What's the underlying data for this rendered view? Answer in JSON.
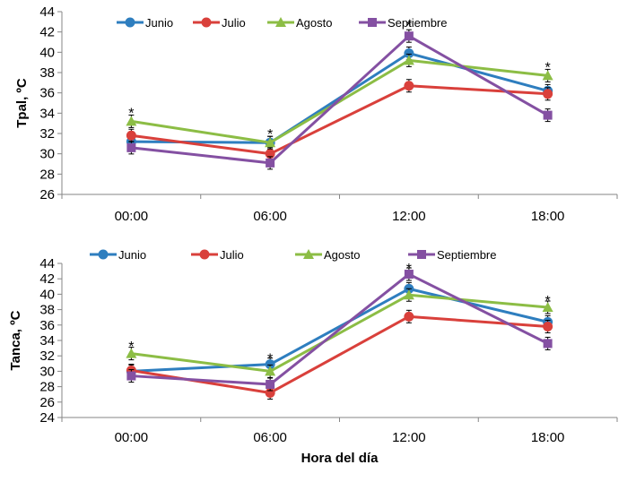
{
  "chart_data": [
    {
      "type": "line",
      "title": "",
      "xlabel": "",
      "ylabel": "Tpal, ºC",
      "ylim": [
        26,
        44
      ],
      "yticks": [
        26,
        28,
        30,
        32,
        34,
        36,
        38,
        40,
        42,
        44
      ],
      "categories": [
        "00:00",
        "06:00",
        "12:00",
        "18:00"
      ],
      "series": [
        {
          "name": "Junio",
          "color": "#2e7ebf",
          "marker": "circle",
          "values": [
            31.2,
            31.1,
            39.9,
            36.2
          ]
        },
        {
          "name": "Julio",
          "color": "#d9403b",
          "marker": "circle",
          "values": [
            31.8,
            30.0,
            36.7,
            35.9
          ]
        },
        {
          "name": "Agosto",
          "color": "#8cbd45",
          "marker": "triangle",
          "values": [
            33.2,
            31.1,
            39.2,
            37.7
          ]
        },
        {
          "name": "Septiembre",
          "color": "#8450a2",
          "marker": "square",
          "values": [
            30.6,
            29.1,
            41.6,
            33.8
          ]
        }
      ],
      "annotations": [
        {
          "text": "*",
          "category": "00:00",
          "value": 34.0
        },
        {
          "text": "*",
          "category": "06:00",
          "value": 31.9
        },
        {
          "text": "*",
          "category": "12:00",
          "value": 42.6
        },
        {
          "text": "*",
          "category": "18:00",
          "value": 38.5
        }
      ]
    },
    {
      "type": "line",
      "title": "",
      "xlabel": "Hora del día",
      "ylabel": "Tanca, ºC",
      "ylim": [
        24,
        44
      ],
      "yticks": [
        24,
        26,
        28,
        30,
        32,
        34,
        36,
        38,
        40,
        42,
        44
      ],
      "categories": [
        "00:00",
        "06:00",
        "12:00",
        "18:00"
      ],
      "series": [
        {
          "name": "Junio",
          "color": "#2e7ebf",
          "marker": "circle",
          "values": [
            30.0,
            30.9,
            40.7,
            36.4
          ]
        },
        {
          "name": "Julio",
          "color": "#d9403b",
          "marker": "circle",
          "values": [
            30.1,
            27.2,
            37.1,
            35.8
          ]
        },
        {
          "name": "Agosto",
          "color": "#8cbd45",
          "marker": "triangle",
          "values": [
            32.3,
            30.0,
            39.9,
            38.3
          ]
        },
        {
          "name": "Septiembre",
          "color": "#8450a2",
          "marker": "square",
          "values": [
            29.4,
            28.3,
            42.6,
            33.6
          ]
        }
      ],
      "annotations": [
        {
          "text": "*",
          "category": "00:00",
          "value": 33.2
        },
        {
          "text": "*",
          "category": "06:00",
          "value": 31.6
        },
        {
          "text": "*",
          "category": "12:00",
          "value": 43.3
        },
        {
          "text": "*",
          "category": "18:00",
          "value": 39.1
        }
      ]
    }
  ]
}
